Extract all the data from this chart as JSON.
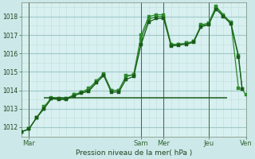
{
  "bg_color": "#cce8e8",
  "plot_bg_color": "#d8f0f0",
  "grid_color_major": "#a0c8c8",
  "grid_color_minor": "#c0dede",
  "line_color_dark": "#1a5c1a",
  "line_color_light": "#2d8b2d",
  "xlabel": "Pression niveau de la mer( hPa )",
  "ylim": [
    1011.5,
    1018.75
  ],
  "yticks": [
    1012,
    1013,
    1014,
    1015,
    1016,
    1017,
    1018
  ],
  "xlim": [
    0,
    240
  ],
  "day_positions": [
    8,
    72,
    128,
    152,
    200,
    240
  ],
  "day_labels": [
    "Mar",
    "",
    "Sam",
    "Mer",
    "Jeu",
    "Ven"
  ],
  "vline_positions": [
    8,
    128,
    152,
    200,
    240
  ],
  "series1_x": [
    0,
    8,
    16,
    24,
    32,
    40,
    48,
    56,
    64,
    72,
    80,
    88,
    96,
    104,
    112,
    120,
    128,
    136,
    144,
    152,
    160,
    168,
    176,
    184,
    192,
    200,
    208,
    216,
    224,
    232,
    236,
    240
  ],
  "series1_y": [
    1011.75,
    1011.9,
    1012.5,
    1013.1,
    1013.6,
    1013.55,
    1013.55,
    1013.75,
    1013.9,
    1014.0,
    1014.5,
    1014.9,
    1014.0,
    1014.0,
    1014.8,
    1014.85,
    1017.0,
    1018.0,
    1018.1,
    1018.1,
    1016.5,
    1016.5,
    1016.55,
    1016.65,
    1017.55,
    1017.65,
    1018.55,
    1018.1,
    1017.65,
    1015.9,
    1014.05,
    1013.75
  ],
  "series2_x": [
    0,
    8,
    16,
    24,
    32,
    40,
    48,
    56,
    64,
    72,
    80,
    88,
    96,
    104,
    112,
    120,
    128,
    136,
    144,
    152,
    160,
    168,
    176,
    184,
    192,
    200,
    208,
    216,
    224,
    232
  ],
  "series2_y": [
    1011.75,
    1011.9,
    1012.5,
    1013.0,
    1013.55,
    1013.55,
    1013.55,
    1013.75,
    1013.9,
    1014.1,
    1014.5,
    1014.85,
    1014.0,
    1014.0,
    1014.75,
    1014.85,
    1016.8,
    1017.85,
    1018.0,
    1018.0,
    1016.45,
    1016.5,
    1016.55,
    1016.65,
    1017.5,
    1017.6,
    1018.5,
    1018.05,
    1017.7,
    1014.1
  ],
  "series3_x": [
    0,
    8,
    16,
    24,
    32,
    40,
    48,
    56,
    64,
    72,
    80,
    88,
    96,
    104,
    112,
    120,
    128,
    136,
    144,
    152,
    160,
    168,
    176,
    184,
    192,
    200,
    208,
    216,
    224,
    232,
    236
  ],
  "series3_y": [
    1011.75,
    1011.9,
    1012.5,
    1013.0,
    1013.55,
    1013.5,
    1013.5,
    1013.7,
    1013.85,
    1013.95,
    1014.4,
    1014.8,
    1013.9,
    1013.9,
    1014.6,
    1014.75,
    1016.5,
    1017.7,
    1017.9,
    1017.9,
    1016.4,
    1016.45,
    1016.5,
    1016.6,
    1017.45,
    1017.55,
    1018.4,
    1018.0,
    1017.6,
    1015.8,
    1014.05
  ],
  "hline_y": 1013.6,
  "hline_xstart": 24,
  "hline_xend": 220
}
